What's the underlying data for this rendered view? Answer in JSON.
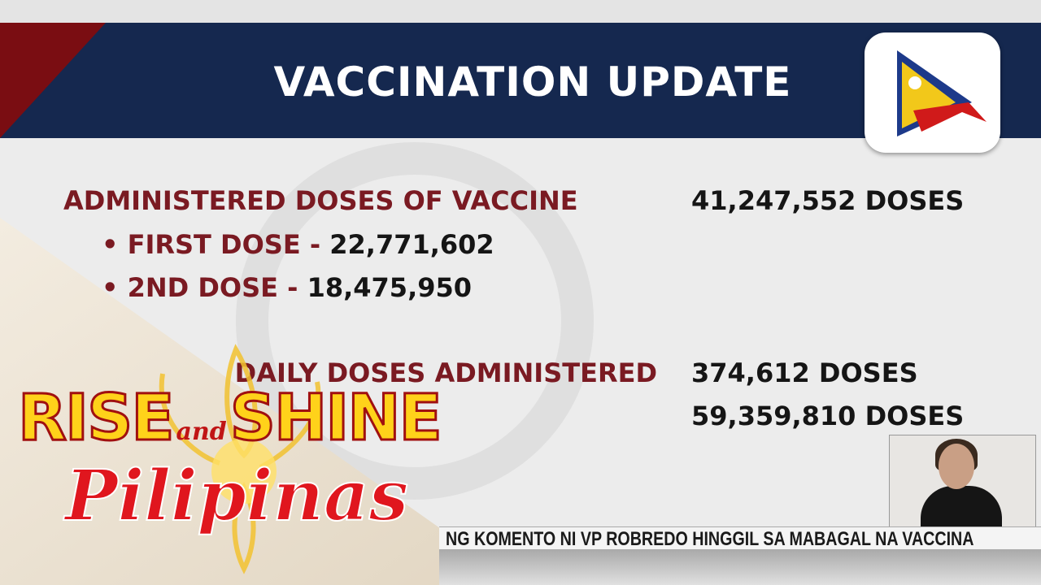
{
  "graphic": {
    "title": "VACCINATION UPDATE",
    "rows": [
      {
        "label": "ADMINISTERED DOSES OF VACCINE",
        "value": "41,247,552 DOSES"
      },
      {
        "label": "FIRST DOSE",
        "value": "22,771,602"
      },
      {
        "label": "2ND DOSE",
        "value": "18,475,950"
      },
      {
        "label": "DAILY DOSES ADMINISTERED",
        "value": "374,612 DOSES"
      },
      {
        "label": "",
        "value": "59,359,810 DOSES"
      }
    ],
    "separator": "-",
    "bullet": "•"
  },
  "show": {
    "name_part1": "RISE",
    "name_and": "and",
    "name_part2": "SHINE",
    "name_part3": "Pilipinas"
  },
  "ticker": {
    "text": "NG KOMENTO NI VP ROBREDO HINGGIL SA MABAGAL NA VACCINA"
  },
  "colors": {
    "banner": "#15284f",
    "accent_red": "#7a1a22",
    "brand_yellow": "#ffd21a"
  }
}
